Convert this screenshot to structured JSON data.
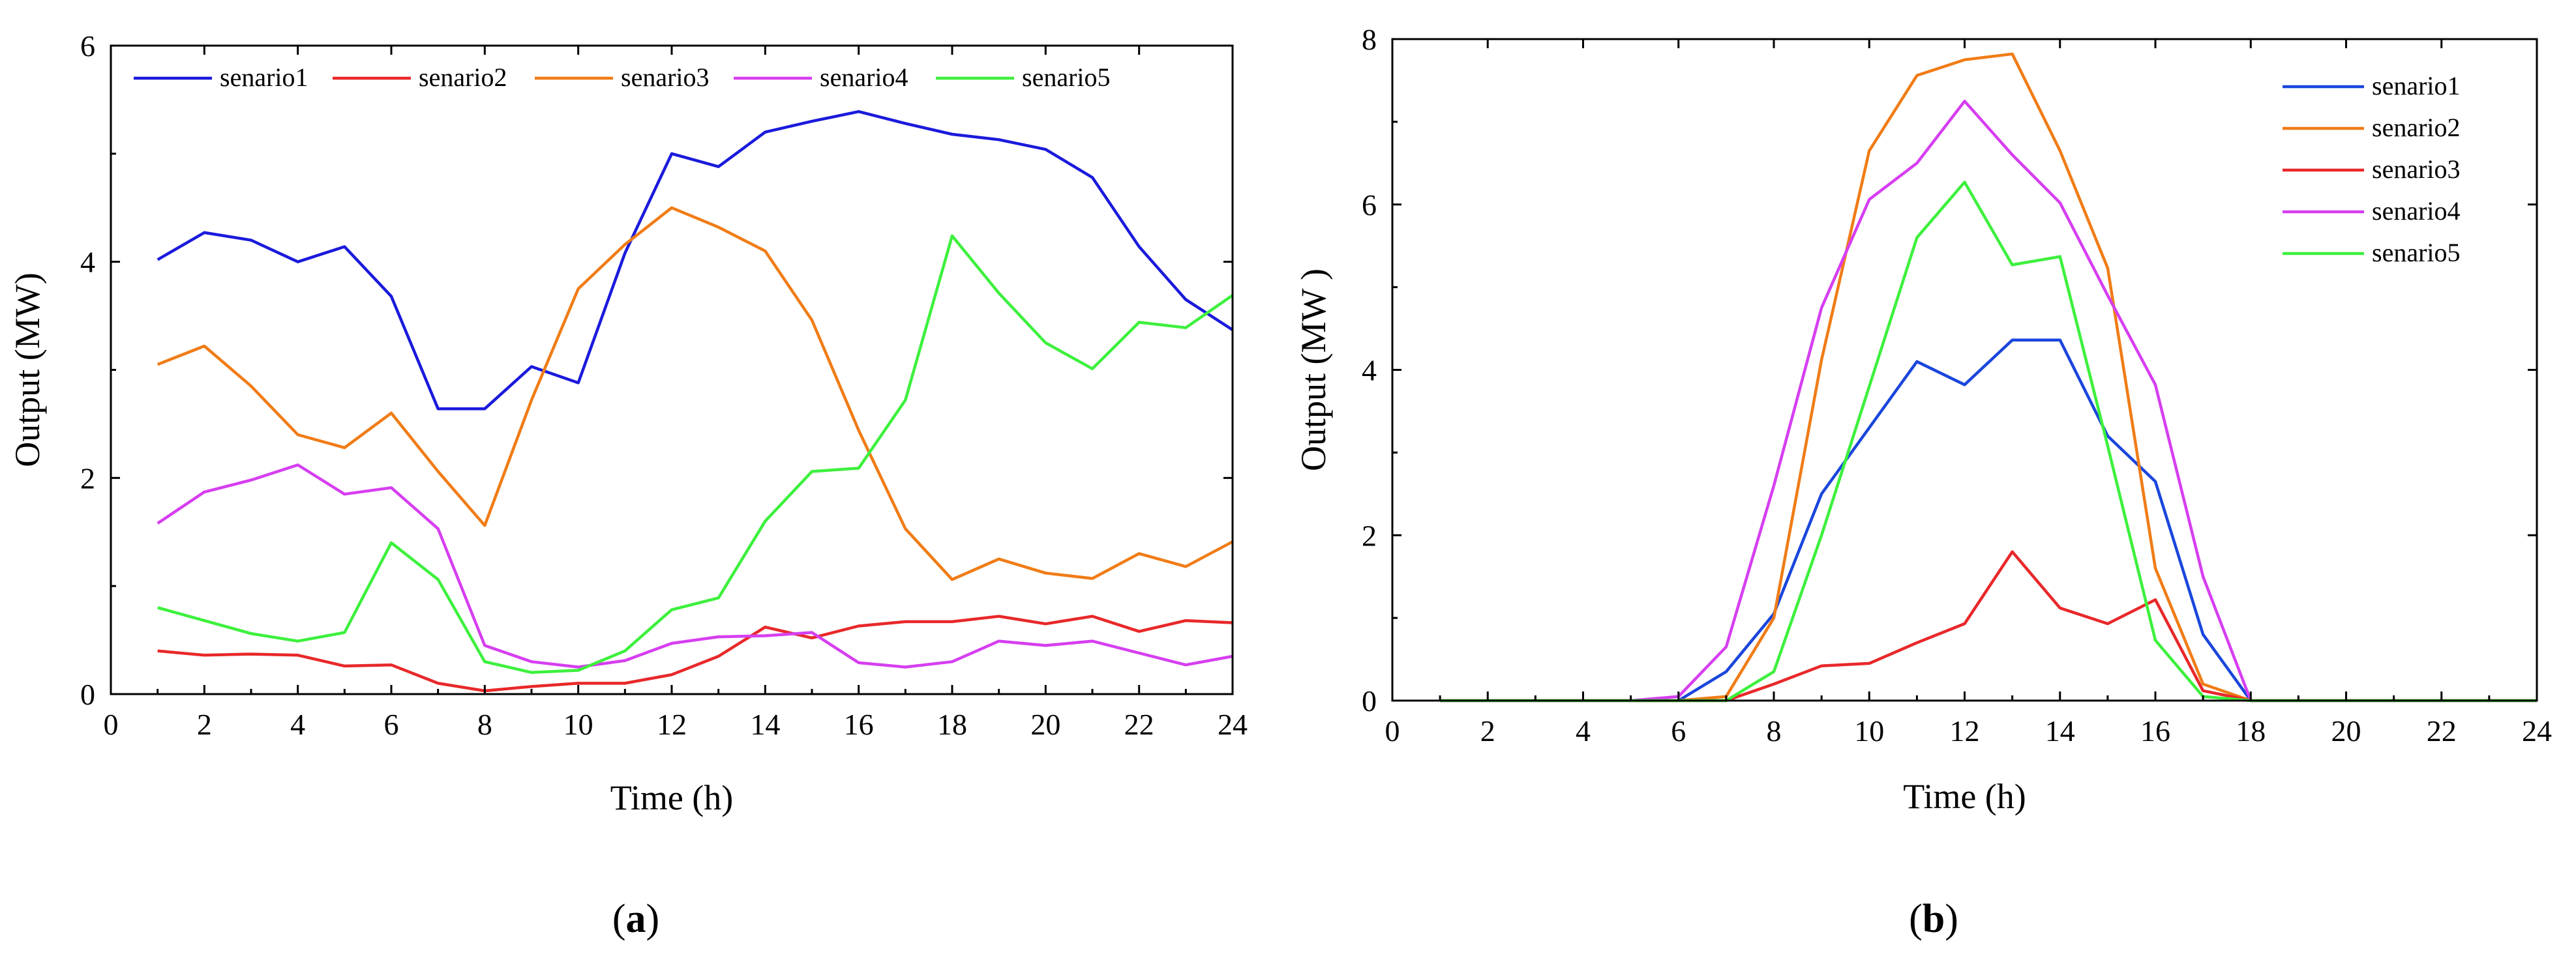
{
  "chart_data": [
    {
      "type": "line",
      "panel": "a",
      "panel_label": "a",
      "title": "",
      "xlabel": "Time (h)",
      "ylabel": "Output (MW)",
      "xlim": [
        0,
        24
      ],
      "ylim": [
        0,
        6
      ],
      "xticks": [
        0,
        2,
        4,
        6,
        8,
        10,
        12,
        14,
        16,
        18,
        20,
        22,
        24
      ],
      "yticks": [
        0,
        2,
        4,
        6
      ],
      "grid": false,
      "legend_position": "top",
      "x": [
        1,
        2,
        3,
        4,
        5,
        6,
        7,
        8,
        9,
        10,
        11,
        12,
        13,
        14,
        15,
        16,
        17,
        18,
        19,
        20,
        21,
        22,
        23,
        24
      ],
      "series": [
        {
          "name": "senario1",
          "color": "#1a1adc",
          "values": [
            4.02,
            4.27,
            4.2,
            4.0,
            4.14,
            3.68,
            2.64,
            2.64,
            3.03,
            2.88,
            4.08,
            5.0,
            4.88,
            5.2,
            5.3,
            5.39,
            5.28,
            5.18,
            5.13,
            5.04,
            4.78,
            4.14,
            3.65,
            3.37
          ]
        },
        {
          "name": "senario2",
          "color": "#e8282a",
          "values": [
            0.4,
            0.36,
            0.37,
            0.36,
            0.26,
            0.27,
            0.1,
            0.03,
            0.07,
            0.1,
            0.1,
            0.18,
            0.35,
            0.62,
            0.52,
            0.63,
            0.67,
            0.67,
            0.72,
            0.65,
            0.72,
            0.58,
            0.68,
            0.66
          ]
        },
        {
          "name": "senario3",
          "color": "#f07c16",
          "values": [
            3.05,
            3.22,
            2.85,
            2.4,
            2.28,
            2.6,
            2.06,
            1.56,
            2.72,
            3.75,
            4.16,
            4.5,
            4.32,
            4.1,
            3.46,
            2.44,
            1.53,
            1.06,
            1.25,
            1.12,
            1.07,
            1.3,
            1.18,
            1.41
          ]
        },
        {
          "name": "senario4",
          "color": "#d63ef0",
          "values": [
            1.58,
            1.87,
            1.98,
            2.12,
            1.85,
            1.91,
            1.53,
            0.45,
            0.3,
            0.25,
            0.31,
            0.47,
            0.53,
            0.54,
            0.57,
            0.29,
            0.25,
            0.3,
            0.49,
            0.45,
            0.49,
            0.38,
            0.27,
            0.35
          ]
        },
        {
          "name": "senario5",
          "color": "#3df03d",
          "values": [
            0.8,
            0.68,
            0.56,
            0.49,
            0.57,
            1.4,
            1.06,
            0.3,
            0.2,
            0.22,
            0.4,
            0.78,
            0.89,
            1.6,
            2.06,
            2.09,
            2.72,
            4.24,
            3.71,
            3.25,
            3.01,
            3.44,
            3.39,
            3.69
          ]
        }
      ]
    },
    {
      "type": "line",
      "panel": "b",
      "panel_label": "b",
      "title": "",
      "xlabel": "Time (h)",
      "ylabel": "Output (MW )",
      "xlim": [
        0,
        24
      ],
      "ylim": [
        0,
        8
      ],
      "xticks": [
        0,
        2,
        4,
        6,
        8,
        10,
        12,
        14,
        16,
        18,
        20,
        22,
        24
      ],
      "yticks": [
        0,
        2,
        4,
        6,
        8
      ],
      "grid": false,
      "legend_position": "top-right",
      "x": [
        1,
        2,
        3,
        4,
        5,
        6,
        7,
        8,
        9,
        10,
        11,
        12,
        13,
        14,
        15,
        16,
        17,
        18,
        19,
        20,
        21,
        22,
        23,
        24
      ],
      "series": [
        {
          "name": "senario1",
          "color": "#1a46dc",
          "values": [
            0,
            0,
            0,
            0,
            0,
            0,
            0.35,
            1.05,
            2.5,
            3.3,
            4.1,
            3.82,
            4.36,
            4.36,
            3.2,
            2.65,
            0.8,
            0,
            0,
            0,
            0,
            0,
            0,
            0
          ]
        },
        {
          "name": "senario2",
          "color": "#f07c16",
          "values": [
            0,
            0,
            0,
            0,
            0,
            0,
            0.05,
            1.0,
            4.12,
            6.65,
            7.56,
            7.75,
            7.82,
            6.65,
            5.23,
            1.6,
            0.2,
            0,
            0,
            0,
            0,
            0,
            0,
            0
          ]
        },
        {
          "name": "senario3",
          "color": "#e8282a",
          "values": [
            0,
            0,
            0,
            0,
            0,
            0,
            0,
            0.2,
            0.42,
            0.45,
            0.7,
            0.93,
            1.8,
            1.12,
            0.93,
            1.22,
            0.12,
            0,
            0,
            0,
            0,
            0,
            0,
            0
          ]
        },
        {
          "name": "senario4",
          "color": "#d63ef0",
          "values": [
            0,
            0,
            0,
            0,
            0,
            0.05,
            0.65,
            2.6,
            4.75,
            6.06,
            6.5,
            7.25,
            6.6,
            6.02,
            4.9,
            3.82,
            1.5,
            0,
            0,
            0,
            0,
            0,
            0,
            0
          ]
        },
        {
          "name": "senario5",
          "color": "#3df03d",
          "values": [
            0,
            0,
            0,
            0,
            0,
            0,
            0,
            0.35,
            2.0,
            3.8,
            5.6,
            6.27,
            5.27,
            5.37,
            3.08,
            0.73,
            0.05,
            0,
            0,
            0,
            0,
            0,
            0,
            0
          ]
        }
      ]
    }
  ]
}
